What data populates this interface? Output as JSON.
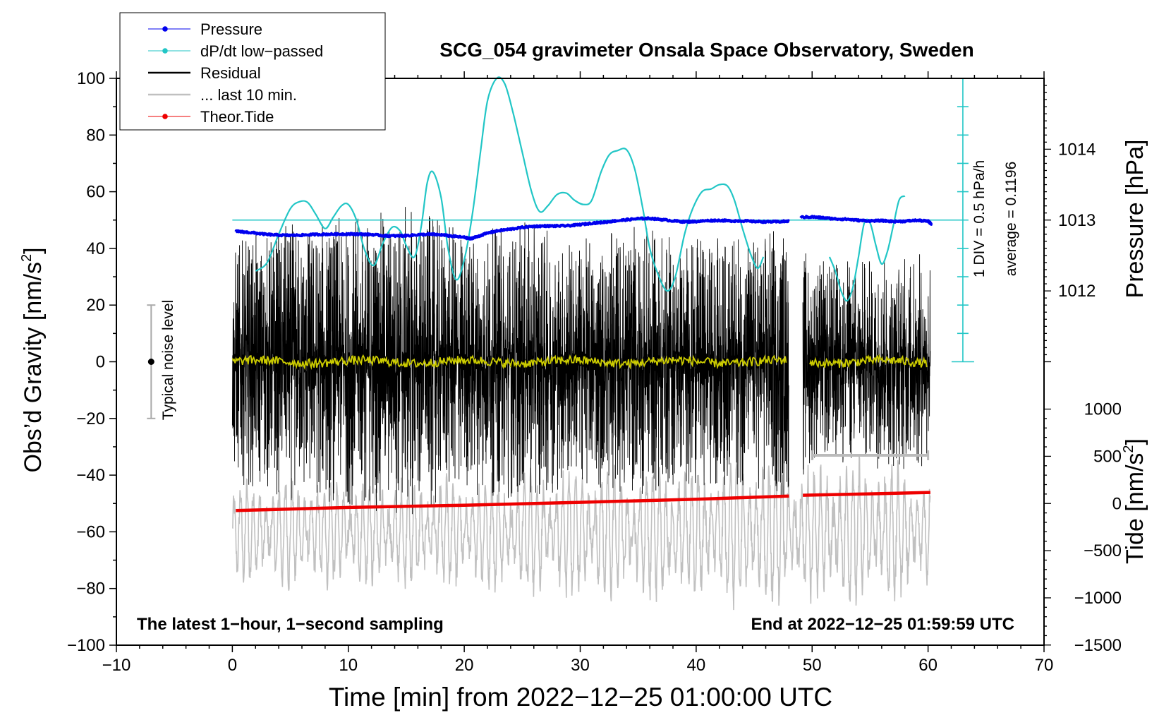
{
  "chart_data": {
    "type": "line",
    "title": "SCG_054 gravimeter Onsala Space Observatory, Sweden",
    "xlabel": "Time [min] from 2022−12−25 01:00:00 UTC",
    "ylabel_left": "Obs’d Gravity [nm/s",
    "ylabel_left_sup": "2",
    "ylabel_left_close": "]",
    "ylabel_right_pressure": "Pressure [hPa]",
    "ylabel_right_tide": "Tide [nm/s",
    "ylabel_right_tide_sup": "2",
    "ylabel_right_tide_close": "]",
    "xlim": [
      -10,
      70
    ],
    "ylim": [
      -100,
      100
    ],
    "x_ticks": [
      "−10",
      "0",
      "10",
      "20",
      "30",
      "40",
      "50",
      "60",
      "70"
    ],
    "x_tick_values": [
      -10,
      0,
      10,
      20,
      30,
      40,
      50,
      60,
      70
    ],
    "y_ticks": [
      "100",
      "80",
      "60",
      "40",
      "20",
      "0",
      "−20",
      "−40",
      "−60",
      "−80",
      "−100"
    ],
    "y_tick_values": [
      100,
      80,
      60,
      40,
      20,
      0,
      -20,
      -40,
      -60,
      -80,
      -100
    ],
    "pressure_axis": {
      "ticks": [
        "1014",
        "1013",
        "1012"
      ],
      "tick_values": [
        1014,
        1013,
        1012
      ],
      "anchor_hPa": 1013,
      "anchor_gravity": 50,
      "gravity_per_hPa": 25
    },
    "tide_axis": {
      "ticks": [
        "1000",
        "500",
        "0",
        "−500",
        "−1000",
        "−1500"
      ],
      "tick_values": [
        1000,
        500,
        0,
        -500,
        -1000,
        -1500
      ],
      "anchor_tide": 0,
      "anchor_gravity": -50,
      "gravity_per_nm": 0.0333
    },
    "legend": {
      "position": "top-left",
      "entries": [
        {
          "label": "Pressure",
          "color": "#0000ee",
          "marker": true
        },
        {
          "label": "dP/dt low−passed",
          "color": "#22c6c6",
          "marker": true
        },
        {
          "label": "Residual",
          "color": "#000000",
          "marker": false
        },
        {
          "label": "... last 10 min.",
          "color": "#c0c0c0",
          "marker": false
        },
        {
          "label": "Theor.Tide",
          "color": "#ee0000",
          "marker": true
        }
      ]
    },
    "dpdt_scale": {
      "label_div": "1 DIV = 0.5 hPa/h",
      "label_avg": "average = 0.1196",
      "x": 63,
      "y_range": [
        0,
        100
      ],
      "divisions": 10,
      "zero_gravity": 50
    },
    "noise_bar": {
      "label": "Typical noise level",
      "x": -7,
      "y_range": [
        -20,
        20
      ]
    },
    "last10_range": {
      "x_range": [
        50,
        60
      ],
      "y": -33
    },
    "annotations": {
      "bottom_left": "The latest 1−hour, 1−second sampling",
      "bottom_right": "End at 2022−12−25 01:59:59 UTC"
    },
    "series": [
      {
        "name": "Pressure",
        "color": "#0000ee",
        "style": "thick-line",
        "segments": [
          {
            "x": [
              0.3,
              1,
              2,
              3,
              4,
              5,
              6,
              7,
              8,
              9,
              10,
              11,
              12,
              13,
              14,
              15,
              16,
              17,
              18,
              19,
              20,
              20.5,
              21,
              22,
              23,
              24,
              25,
              26,
              27,
              28,
              29,
              30,
              31,
              32,
              33,
              34,
              35,
              36,
              37,
              38,
              39,
              40,
              41,
              42,
              43,
              44,
              45,
              46,
              47,
              48
            ],
            "y": [
              46,
              45.8,
              45.4,
              44.9,
              44.7,
              44.6,
              44.7,
              44.9,
              45,
              45,
              45.1,
              45,
              44.9,
              44.5,
              44.4,
              44.5,
              44.8,
              45,
              44.8,
              44.3,
              43.9,
              43.4,
              44,
              45.4,
              46.3,
              46.8,
              47.4,
              47.8,
              47.9,
              47.9,
              48,
              48.4,
              48.9,
              49.2,
              49.7,
              50.1,
              50.5,
              50.6,
              50.2,
              49.7,
              49.4,
              49.5,
              49.8,
              49.9,
              49.7,
              49.7,
              49.5,
              49.4,
              49.4,
              49.6
            ]
          },
          {
            "x": [
              49,
              50,
              51,
              52,
              53,
              54,
              55,
              56,
              57,
              58,
              59,
              60,
              60.3
            ],
            "y": [
              51,
              51.1,
              50.8,
              50.4,
              50.3,
              49.9,
              49.7,
              49.8,
              49.5,
              49.6,
              49.9,
              49.6,
              48.6
            ]
          }
        ]
      },
      {
        "name": "dP/dt low−passed",
        "color": "#22c6c6",
        "style": "line",
        "segments": [
          {
            "x": [
              2,
              3,
              4,
              5,
              5.8,
              6.5,
              7.2,
              8,
              8.7,
              9.4,
              10,
              10.7,
              11.4,
              12.2,
              13,
              13.8,
              14.5,
              15,
              15.7,
              16.3,
              16.8,
              17.3,
              18,
              18.6,
              19.3,
              20,
              20.7,
              21.4,
              22,
              22.8,
              23.5,
              24.2,
              25,
              25.8,
              26.5,
              27.2,
              28,
              28.8,
              29.5,
              30.3,
              31,
              31.8,
              32.5,
              33.2,
              34,
              34.7,
              35.4,
              36,
              36.7,
              37.5,
              38.2,
              39,
              39.7,
              40.5,
              41.3,
              42,
              42.7,
              43.3,
              44,
              44.7,
              45.3,
              45.8
            ],
            "y": [
              32,
              35,
              45,
              54,
              56.5,
              56.2,
              52,
              47,
              51,
              55,
              55.5,
              50,
              39.5,
              34,
              42,
              47.5,
              46,
              41,
              37,
              48,
              63,
              67,
              58,
              40,
              29,
              36,
              52,
              74,
              92,
              100,
              98,
              88,
              74,
              60,
              53,
              55,
              59,
              59.5,
              57,
              55.5,
              57,
              67,
              73,
              74.5,
              74.8,
              68,
              54,
              40,
              31,
              25,
              30,
              45,
              54,
              60,
              61,
              62.5,
              62,
              57,
              47,
              38,
              33,
              37
            ]
          },
          {
            "x": [
              51.5,
              52,
              52.5,
              53,
              53.5,
              54,
              54.5,
              55,
              55.5,
              56,
              56.5,
              57,
              57.5,
              58
            ],
            "y": [
              37,
              32,
              25,
              21.5,
              26,
              37,
              49,
              49,
              41,
              34.5,
              39,
              48,
              57,
              58.5
            ]
          }
        ]
      },
      {
        "name": "Residual",
        "color": "#000000",
        "style": "noise",
        "segments": [
          {
            "x_range": [
              0,
              48
            ]
          },
          {
            "x_range": [
              49.2,
              60.2
            ]
          }
        ],
        "amplitude_envelope": {
          "x": [
            0,
            5,
            10,
            15,
            20,
            25,
            30,
            35,
            40,
            45,
            48,
            50,
            55,
            60
          ],
          "y": [
            28,
            33,
            34,
            37,
            31,
            33,
            29,
            32,
            29,
            30,
            34,
            24,
            25,
            26
          ]
        }
      },
      {
        "name": "Residual smoothed",
        "color": "#cccc00",
        "style": "thin-line",
        "segments": [
          {
            "x_range": [
              0,
              47.8
            ]
          },
          {
            "x_range": [
              49.8,
              59.9
            ]
          }
        ]
      },
      {
        "name": "... last 10 min.",
        "color": "#c0c0c0",
        "style": "oscillation",
        "segments": [
          {
            "x_range": [
              0,
              60.2
            ]
          }
        ],
        "amplitude_envelope": {
          "x": [
            0,
            5,
            10,
            15,
            20,
            25,
            30,
            35,
            40,
            45,
            50,
            55,
            60
          ],
          "y": [
            15,
            17,
            16,
            17,
            17,
            19,
            20,
            20,
            20,
            23,
            20,
            23,
            17
          ]
        }
      },
      {
        "name": "Theor.Tide",
        "color": "#ee0000",
        "style": "thick-line",
        "segments": [
          {
            "x": [
              0.3,
              10,
              20,
              30,
              40,
              48
            ],
            "y": [
              -52.5,
              -51.4,
              -50.6,
              -49.6,
              -48.5,
              -47.4
            ]
          },
          {
            "x": [
              49.2,
              55,
              60.2
            ],
            "y": [
              -47.1,
              -46.6,
              -46.1
            ]
          }
        ]
      }
    ]
  }
}
